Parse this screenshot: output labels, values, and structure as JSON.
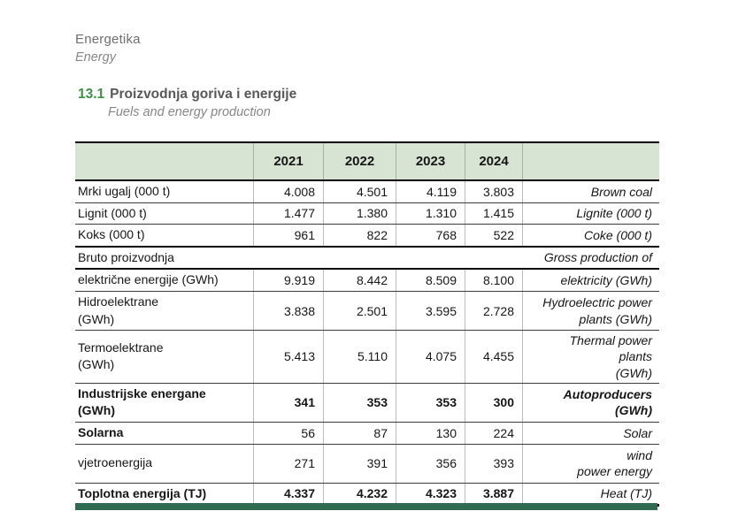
{
  "page": {
    "chapter": {
      "bs": "Energetika",
      "en": "Energy"
    },
    "section": {
      "number": "13.1",
      "title_bs": "Proizvodnja goriva i energije",
      "title_en": "Fuels and energy production"
    }
  },
  "table": {
    "col_headers": [
      "2021",
      "2022",
      "2023",
      "2024"
    ],
    "rows": [
      {
        "kind": "data",
        "bs": [
          "Mrki ugalj (000 t)"
        ],
        "en": [
          "Brown coal"
        ],
        "values": [
          "4.008",
          "4.501",
          "4.119",
          "3.803"
        ]
      },
      {
        "kind": "data",
        "bs": [
          "Lignit (000 t)"
        ],
        "en": [
          "Lignite (000 t)"
        ],
        "values": [
          "1.477",
          "1.380",
          "1.310",
          "1.415"
        ]
      },
      {
        "kind": "data",
        "bs": [
          "Koks (000 t)"
        ],
        "en": [
          "Coke (000 t)"
        ],
        "values": [
          "961",
          "822",
          "768",
          "522"
        ],
        "sep": "thick"
      },
      {
        "kind": "span",
        "bs": [
          "Bruto proizvodnja"
        ],
        "en": [
          "Gross production of"
        ],
        "sep": "thick"
      },
      {
        "kind": "data",
        "bs": [
          "električne energije (GWh)"
        ],
        "en": [
          "elektricity (GWh)"
        ],
        "values": [
          "9.919",
          "8.442",
          "8.509",
          "8.100"
        ]
      },
      {
        "kind": "data",
        "bs": [
          "Hidroelektrane",
          "(GWh)"
        ],
        "en": [
          "Hydroelectric power",
          "plants (GWh)"
        ],
        "values": [
          "3.838",
          "2.501",
          "3.595",
          "2.728"
        ]
      },
      {
        "kind": "data",
        "bs": [
          "Termoelektrane",
          "(GWh)"
        ],
        "en": [
          "Thermal power",
          "plants",
          "(GWh)"
        ],
        "values": [
          "5.413",
          "5.110",
          "4.075",
          "4.455"
        ]
      },
      {
        "kind": "data",
        "bs": [
          "Industrijske energane",
          "(GWh)"
        ],
        "en": [
          "Autoproducers",
          "(GWh)"
        ],
        "values": [
          "341",
          "353",
          "353",
          "300"
        ],
        "label_bold": true,
        "values_bold": true,
        "en_bold": true
      },
      {
        "kind": "data",
        "bs": [
          "Solarna"
        ],
        "en": [
          "Solar"
        ],
        "values": [
          "56",
          "87",
          "130",
          "224"
        ],
        "label_bold": true
      },
      {
        "kind": "data",
        "bs": [
          "vjetroenergija"
        ],
        "en": [
          "wind",
          "power energy"
        ],
        "values": [
          "271",
          "391",
          "356",
          "393"
        ]
      },
      {
        "kind": "data",
        "bs": [
          "Toplotna energija (TJ)"
        ],
        "en": [
          "Heat (TJ)"
        ],
        "values": [
          "4.337",
          "4.232",
          "4.323",
          "3.887"
        ],
        "label_bold": true,
        "values_bold": true
      }
    ]
  },
  "colors": {
    "accent_green": "#3e9142",
    "table_header_bg": "#d7e3d3",
    "footer_bar_green": "#2e6b50"
  }
}
